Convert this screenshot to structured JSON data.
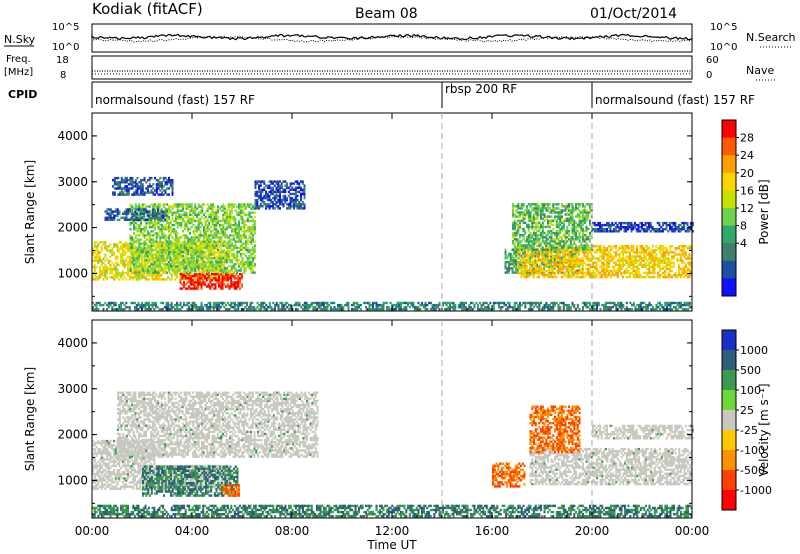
{
  "header": {
    "station": "Kodiak (fitACF)",
    "beam": "Beam 08",
    "date": "01/Oct/2014"
  },
  "nsky_panel": {
    "left_label": "N.Sky",
    "right_label": "N.Search",
    "left_ticks": [
      "10^5",
      "10^0"
    ],
    "right_ticks": [
      "10^5",
      "10^0"
    ]
  },
  "freq_panel": {
    "left_label_1": "Freq.",
    "left_label_2": "[MHz]",
    "right_label": "Nave",
    "left_ticks": [
      "18",
      "8"
    ],
    "right_ticks": [
      "60",
      "0"
    ]
  },
  "cpid": {
    "label": "CPID",
    "modes": [
      "normalsound (fast) 157 RF",
      "rbsp 200 RF",
      "normalsound (fast) 157 RF"
    ]
  },
  "x_axis": {
    "label": "Time UT",
    "ticks": [
      "00:00",
      "04:00",
      "08:00",
      "12:00",
      "16:00",
      "20:00",
      "00:00"
    ]
  },
  "power_colorbar": {
    "label": "Power [dB]",
    "ticks": [
      "28",
      "24",
      "20",
      "16",
      "12",
      "8",
      "4"
    ],
    "colors": [
      "#ff0000",
      "#ff5a00",
      "#ff9f00",
      "#ffd500",
      "#c8e000",
      "#6fd24a",
      "#2fa868",
      "#3f7f6b",
      "#1f4fa0",
      "#1010ff"
    ]
  },
  "velocity_colorbar": {
    "label": "Velocity [m s⁻¹]",
    "ticks": [
      "1000",
      "500",
      "100",
      "25",
      "-25",
      "-100",
      "-500",
      "-1000"
    ],
    "colors": [
      "#1830c8",
      "#2d5f7a",
      "#3c9a50",
      "#6ed83a",
      "#c8c8c0",
      "#ffc800",
      "#ff9000",
      "#ff4000",
      "#ff0000"
    ]
  },
  "chart_data": [
    {
      "type": "heatmap",
      "title": "Power",
      "ylabel": "Slant Range [km]",
      "xlabel": "Time UT",
      "xlim": [
        0,
        24
      ],
      "ylim": [
        180,
        4500
      ],
      "y_ticks": [
        1000,
        2000,
        3000,
        4000
      ],
      "zlabel": "Power [dB]",
      "zlim": [
        0,
        30
      ],
      "mode_boundaries_hours": [
        14.0,
        20.0
      ],
      "echo_regions": [
        {
          "t": [
            0.0,
            5.5
          ],
          "range": [
            850,
            1700
          ],
          "power_db": 18
        },
        {
          "t": [
            3.5,
            6.0
          ],
          "range": [
            650,
            1000
          ],
          "power_db": 28
        },
        {
          "t": [
            1.5,
            6.5
          ],
          "range": [
            1000,
            2500
          ],
          "power_db": 14
        },
        {
          "t": [
            0.5,
            3.0
          ],
          "range": [
            2150,
            2400
          ],
          "power_db": 6
        },
        {
          "t": [
            0.8,
            3.2
          ],
          "range": [
            2700,
            3100
          ],
          "power_db": 5
        },
        {
          "t": [
            6.5,
            8.5
          ],
          "range": [
            2400,
            3000
          ],
          "power_db": 5
        },
        {
          "t": [
            16.5,
            19.5
          ],
          "range": [
            1000,
            1500
          ],
          "power_db": 10
        },
        {
          "t": [
            17.0,
            24.0
          ],
          "range": [
            900,
            1600
          ],
          "power_db": 20
        },
        {
          "t": [
            16.8,
            20.0
          ],
          "range": [
            1500,
            2500
          ],
          "power_db": 12
        },
        {
          "t": [
            20.0,
            24.0
          ],
          "range": [
            1900,
            2100
          ],
          "power_db": 4
        },
        {
          "t": [
            0.0,
            24.0
          ],
          "range": [
            200,
            380
          ],
          "power_db": 8
        }
      ]
    },
    {
      "type": "heatmap",
      "title": "Velocity",
      "ylabel": "Slant Range [km]",
      "xlabel": "Time UT",
      "xlim": [
        0,
        24
      ],
      "ylim": [
        180,
        4500
      ],
      "y_ticks": [
        1000,
        2000,
        3000,
        4000
      ],
      "zlabel": "Velocity [m s⁻¹]",
      "zlim": [
        -1000,
        1000
      ],
      "mode_boundaries_hours": [
        14.0,
        20.0
      ],
      "echo_regions": [
        {
          "t": [
            0.0,
            2.5
          ],
          "range": [
            1300,
            1850
          ],
          "velocity": 0
        },
        {
          "t": [
            0.0,
            5.5
          ],
          "range": [
            800,
            1300
          ],
          "velocity": 0
        },
        {
          "t": [
            1.0,
            9.0
          ],
          "range": [
            1500,
            2900
          ],
          "velocity": 0
        },
        {
          "t": [
            2.0,
            5.8
          ],
          "range": [
            650,
            1300
          ],
          "velocity": 100
        },
        {
          "t": [
            5.2,
            5.9
          ],
          "range": [
            650,
            900
          ],
          "velocity": -500
        },
        {
          "t": [
            16.0,
            17.3
          ],
          "range": [
            850,
            1350
          ],
          "velocity": -500
        },
        {
          "t": [
            17.5,
            24.0
          ],
          "range": [
            900,
            1700
          ],
          "velocity": 0
        },
        {
          "t": [
            17.5,
            19.5
          ],
          "range": [
            1600,
            2600
          ],
          "velocity": -500
        },
        {
          "t": [
            20.0,
            24.0
          ],
          "range": [
            1900,
            2200
          ],
          "velocity": 0
        },
        {
          "t": [
            0.0,
            24.0
          ],
          "range": [
            200,
            450
          ],
          "velocity": 100
        }
      ]
    }
  ]
}
